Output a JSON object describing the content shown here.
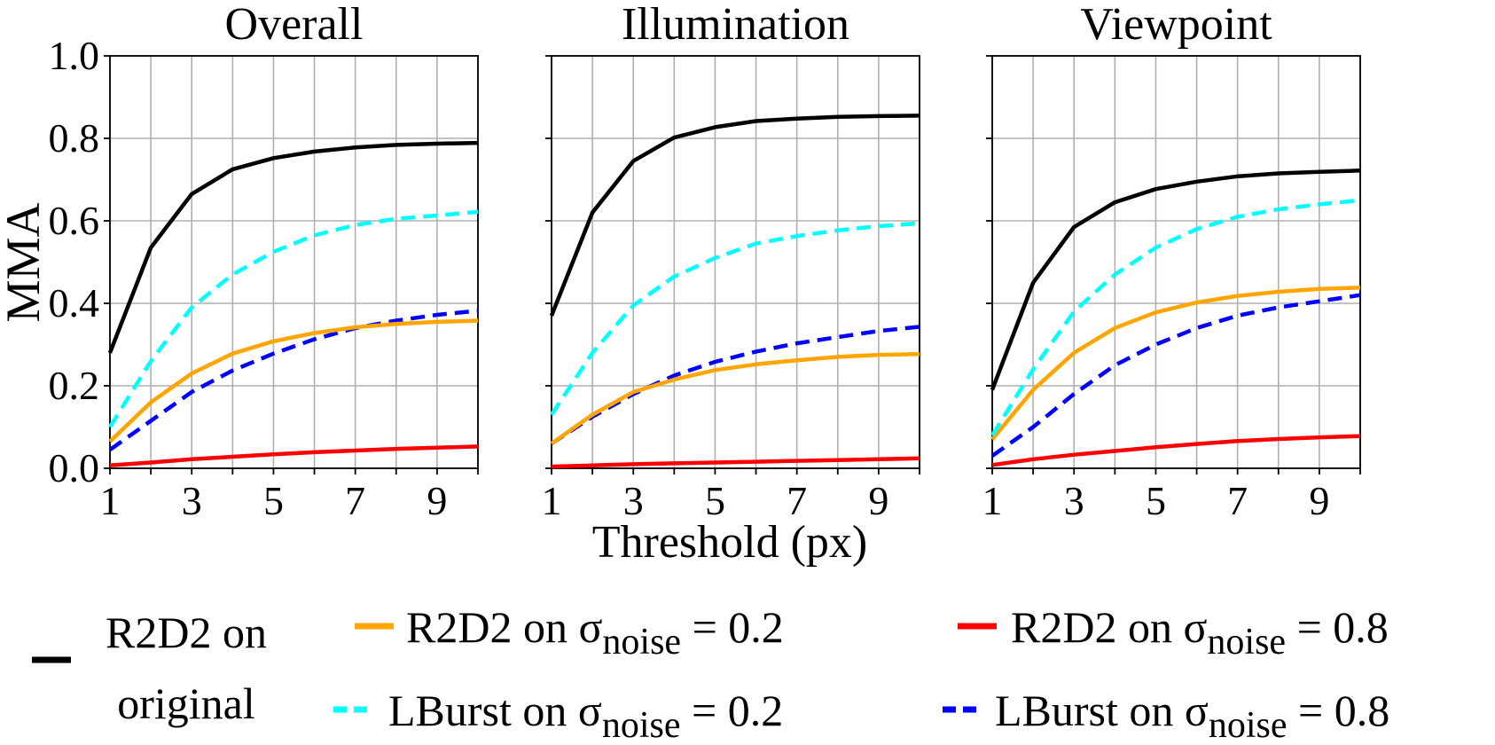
{
  "chart_data": {
    "type": "line",
    "ylabel": "MMA",
    "xlabel": "Threshold (px)",
    "xlim": [
      1,
      10
    ],
    "ylim": [
      0,
      1.0
    ],
    "x": [
      1,
      2,
      3,
      4,
      5,
      6,
      7,
      8,
      9,
      10
    ],
    "x_ticks": [
      "1",
      "3",
      "5",
      "7",
      "9"
    ],
    "y_ticks": [
      "0.0",
      "0.2",
      "0.4",
      "0.6",
      "0.8",
      "1.0"
    ],
    "grid": true,
    "legend_position": "bottom",
    "series_styles": [
      {
        "key": "r2d2_orig",
        "color": "#000000",
        "dashed": false
      },
      {
        "key": "r2d2_02",
        "color": "#FFA500",
        "dashed": false
      },
      {
        "key": "r2d2_08",
        "color": "#FF0000",
        "dashed": false
      },
      {
        "key": "lburst_02",
        "color": "#00FFFF",
        "dashed": true
      },
      {
        "key": "lburst_08",
        "color": "#0000FF",
        "dashed": true
      }
    ],
    "legend": [
      {
        "key": "r2d2_orig",
        "line1": "R2D2 on",
        "line2": "original"
      },
      {
        "key": "r2d2_02",
        "prefix": "R2D2 on σ",
        "sub": "noise",
        "suffix": " = 0.2"
      },
      {
        "key": "r2d2_08",
        "prefix": "R2D2 on σ",
        "sub": "noise",
        "suffix": " = 0.8"
      },
      {
        "key": "lburst_02",
        "prefix": "LBurst on σ",
        "sub": "noise",
        "suffix": " = 0.2"
      },
      {
        "key": "lburst_08",
        "prefix": "LBurst on σ",
        "sub": "noise",
        "suffix": " = 0.8"
      }
    ],
    "panels": [
      {
        "title": "Overall",
        "series": {
          "r2d2_orig": [
            0.28,
            0.535,
            0.665,
            0.725,
            0.752,
            0.768,
            0.778,
            0.784,
            0.787,
            0.789
          ],
          "r2d2_02": [
            0.065,
            0.16,
            0.23,
            0.278,
            0.308,
            0.328,
            0.342,
            0.35,
            0.355,
            0.358
          ],
          "r2d2_08": [
            0.007,
            0.014,
            0.022,
            0.028,
            0.034,
            0.039,
            0.043,
            0.047,
            0.05,
            0.053
          ],
          "lburst_02": [
            0.1,
            0.26,
            0.39,
            0.47,
            0.525,
            0.565,
            0.59,
            0.605,
            0.613,
            0.622
          ],
          "lburst_08": [
            0.045,
            0.115,
            0.185,
            0.237,
            0.278,
            0.313,
            0.34,
            0.358,
            0.372,
            0.382
          ]
        }
      },
      {
        "title": "Illumination",
        "series": {
          "r2d2_orig": [
            0.37,
            0.62,
            0.745,
            0.802,
            0.827,
            0.842,
            0.848,
            0.852,
            0.854,
            0.855
          ],
          "r2d2_02": [
            0.06,
            0.13,
            0.185,
            0.215,
            0.238,
            0.252,
            0.262,
            0.27,
            0.275,
            0.277
          ],
          "r2d2_08": [
            0.004,
            0.007,
            0.01,
            0.012,
            0.014,
            0.016,
            0.018,
            0.02,
            0.022,
            0.024
          ],
          "lburst_02": [
            0.13,
            0.28,
            0.395,
            0.465,
            0.51,
            0.545,
            0.563,
            0.577,
            0.587,
            0.594
          ],
          "lburst_08": [
            0.06,
            0.125,
            0.18,
            0.225,
            0.258,
            0.283,
            0.303,
            0.318,
            0.333,
            0.343
          ]
        }
      },
      {
        "title": "Viewpoint",
        "series": {
          "r2d2_orig": [
            0.19,
            0.45,
            0.585,
            0.645,
            0.677,
            0.695,
            0.708,
            0.715,
            0.719,
            0.722
          ],
          "r2d2_02": [
            0.07,
            0.19,
            0.28,
            0.34,
            0.378,
            0.402,
            0.418,
            0.428,
            0.435,
            0.438
          ],
          "r2d2_08": [
            0.008,
            0.022,
            0.033,
            0.042,
            0.051,
            0.059,
            0.066,
            0.071,
            0.075,
            0.078
          ],
          "lburst_02": [
            0.08,
            0.24,
            0.38,
            0.47,
            0.535,
            0.58,
            0.61,
            0.628,
            0.64,
            0.65
          ],
          "lburst_08": [
            0.03,
            0.1,
            0.18,
            0.25,
            0.3,
            0.34,
            0.37,
            0.39,
            0.405,
            0.42
          ]
        }
      }
    ]
  }
}
